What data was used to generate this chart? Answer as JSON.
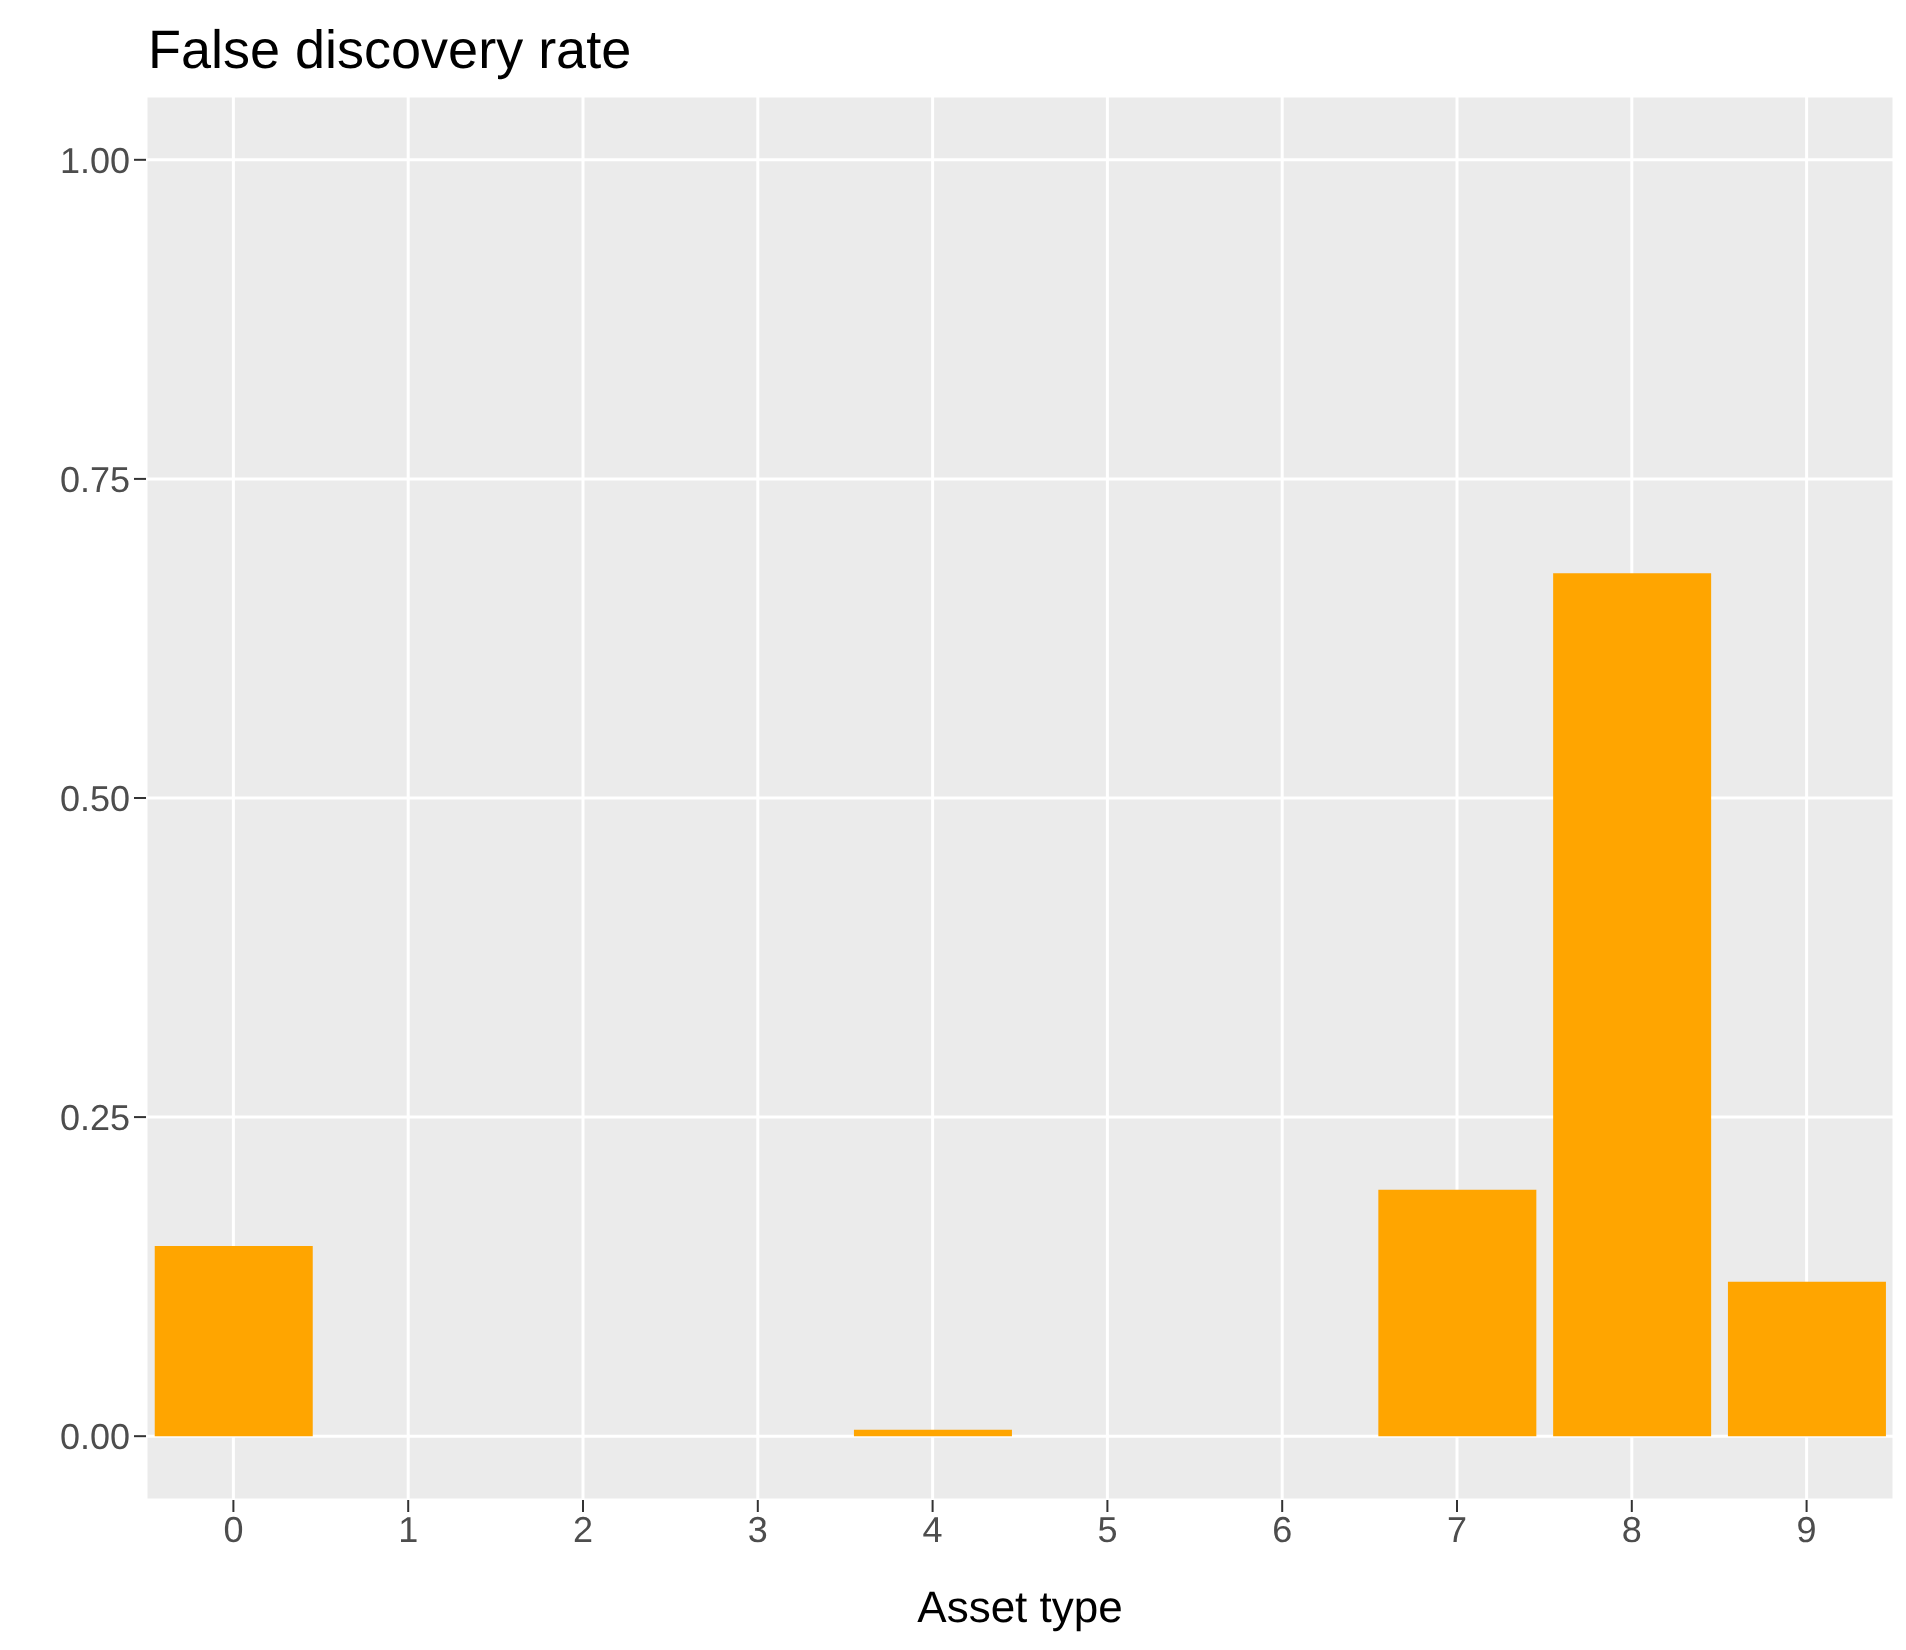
{
  "chart_data": {
    "type": "bar",
    "title": "False discovery rate",
    "xlabel": "Asset type",
    "categories": [
      "0",
      "1",
      "2",
      "3",
      "4",
      "5",
      "6",
      "7",
      "8",
      "9"
    ],
    "values": [
      0.149,
      0,
      0,
      0,
      0.005,
      0,
      0,
      0.193,
      0.676,
      0.121
    ],
    "color": "#ffa500",
    "ylim": [
      -0.05,
      1.05
    ],
    "yticks": [
      {
        "value": 0,
        "label": "0.00"
      },
      {
        "value": 0.25,
        "label": "0.25"
      },
      {
        "value": 0.5,
        "label": "0.50"
      },
      {
        "value": 0.75,
        "label": "0.75"
      },
      {
        "value": 1,
        "label": "1.00"
      }
    ],
    "grid": true
  }
}
